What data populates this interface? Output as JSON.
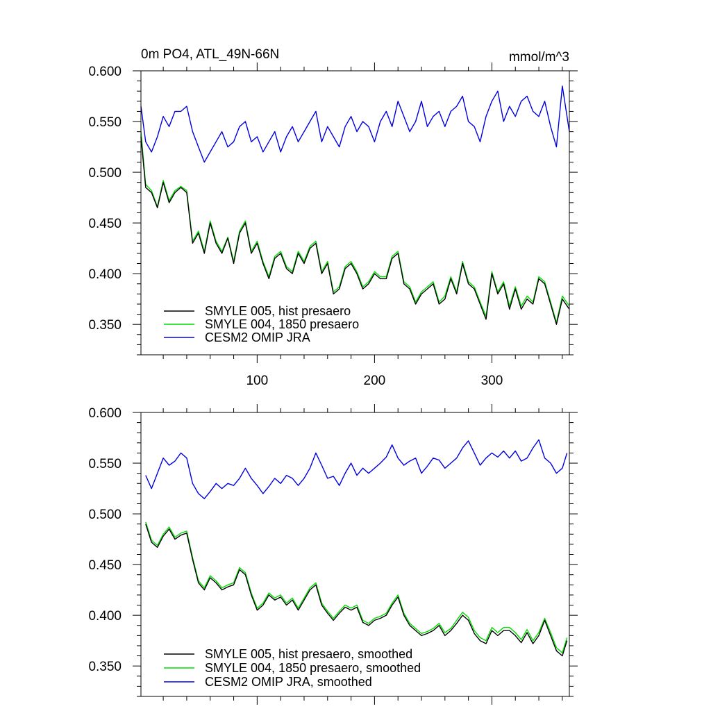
{
  "colors": {
    "black": "#000000",
    "green": "#00dd00",
    "blue": "#0000dd"
  },
  "chart_data": [
    {
      "type": "line",
      "title": "0m PO4, ATL_49N-66N",
      "units": "mmol/m^3",
      "xlim": [
        1,
        366
      ],
      "ylim": [
        0.32,
        0.6
      ],
      "x_ticks": [
        100,
        200,
        300
      ],
      "y_ticks": [
        0.35,
        0.4,
        0.45,
        0.5,
        0.55,
        0.6
      ],
      "y_tick_labels": [
        "0.350",
        "0.400",
        "0.450",
        "0.500",
        "0.550",
        "0.600"
      ],
      "legend_position": "bottom-left",
      "series": [
        {
          "name": "SMYLE 005, hist presaero",
          "color": "#000000",
          "x": [
            1,
            5,
            10,
            15,
            20,
            25,
            30,
            35,
            40,
            45,
            50,
            55,
            60,
            65,
            70,
            75,
            80,
            85,
            90,
            95,
            100,
            105,
            110,
            115,
            120,
            125,
            130,
            135,
            140,
            145,
            150,
            155,
            160,
            165,
            170,
            175,
            180,
            185,
            190,
            195,
            200,
            205,
            210,
            215,
            220,
            225,
            230,
            235,
            240,
            245,
            250,
            255,
            260,
            265,
            270,
            275,
            280,
            285,
            290,
            295,
            300,
            305,
            310,
            315,
            320,
            325,
            330,
            335,
            340,
            345,
            350,
            355,
            360,
            366
          ],
          "values": [
            0.535,
            0.485,
            0.48,
            0.465,
            0.49,
            0.47,
            0.48,
            0.485,
            0.48,
            0.43,
            0.44,
            0.42,
            0.45,
            0.43,
            0.42,
            0.435,
            0.41,
            0.44,
            0.45,
            0.42,
            0.43,
            0.41,
            0.395,
            0.415,
            0.42,
            0.405,
            0.4,
            0.42,
            0.41,
            0.425,
            0.43,
            0.4,
            0.41,
            0.38,
            0.385,
            0.405,
            0.41,
            0.4,
            0.385,
            0.39,
            0.4,
            0.395,
            0.395,
            0.415,
            0.42,
            0.39,
            0.385,
            0.37,
            0.38,
            0.385,
            0.39,
            0.37,
            0.375,
            0.395,
            0.38,
            0.41,
            0.39,
            0.385,
            0.37,
            0.355,
            0.4,
            0.38,
            0.39,
            0.365,
            0.385,
            0.365,
            0.375,
            0.37,
            0.395,
            0.39,
            0.37,
            0.35,
            0.375,
            0.365
          ]
        },
        {
          "name": "SMYLE 004, 1850 presaero",
          "color": "#00dd00",
          "x": [
            1,
            5,
            10,
            15,
            20,
            25,
            30,
            35,
            40,
            45,
            50,
            55,
            60,
            65,
            70,
            75,
            80,
            85,
            90,
            95,
            100,
            105,
            110,
            115,
            120,
            125,
            130,
            135,
            140,
            145,
            150,
            155,
            160,
            165,
            170,
            175,
            180,
            185,
            190,
            195,
            200,
            205,
            210,
            215,
            220,
            225,
            230,
            235,
            240,
            245,
            250,
            255,
            260,
            265,
            270,
            275,
            280,
            285,
            290,
            295,
            300,
            305,
            310,
            315,
            320,
            325,
            330,
            335,
            340,
            345,
            350,
            355,
            360,
            366
          ],
          "values": [
            0.54,
            0.488,
            0.482,
            0.466,
            0.492,
            0.472,
            0.482,
            0.486,
            0.482,
            0.432,
            0.442,
            0.422,
            0.452,
            0.432,
            0.422,
            0.436,
            0.412,
            0.442,
            0.452,
            0.422,
            0.432,
            0.412,
            0.397,
            0.417,
            0.422,
            0.407,
            0.402,
            0.422,
            0.412,
            0.427,
            0.432,
            0.402,
            0.412,
            0.382,
            0.387,
            0.407,
            0.412,
            0.402,
            0.387,
            0.392,
            0.402,
            0.397,
            0.397,
            0.417,
            0.422,
            0.392,
            0.387,
            0.372,
            0.382,
            0.387,
            0.392,
            0.372,
            0.378,
            0.397,
            0.382,
            0.412,
            0.392,
            0.387,
            0.372,
            0.358,
            0.402,
            0.382,
            0.392,
            0.368,
            0.387,
            0.368,
            0.378,
            0.372,
            0.397,
            0.392,
            0.372,
            0.352,
            0.378,
            0.368
          ]
        },
        {
          "name": "CESM2 OMIP JRA",
          "color": "#0000dd",
          "x": [
            1,
            5,
            10,
            15,
            20,
            25,
            30,
            35,
            40,
            45,
            50,
            55,
            60,
            65,
            70,
            75,
            80,
            85,
            90,
            95,
            100,
            105,
            110,
            115,
            120,
            125,
            130,
            135,
            140,
            145,
            150,
            155,
            160,
            165,
            170,
            175,
            180,
            185,
            190,
            195,
            200,
            205,
            210,
            215,
            220,
            225,
            230,
            235,
            240,
            245,
            250,
            255,
            260,
            265,
            270,
            275,
            280,
            285,
            290,
            295,
            300,
            305,
            310,
            315,
            320,
            325,
            330,
            335,
            340,
            345,
            350,
            355,
            360,
            366
          ],
          "values": [
            0.565,
            0.53,
            0.52,
            0.535,
            0.555,
            0.545,
            0.56,
            0.56,
            0.565,
            0.54,
            0.525,
            0.51,
            0.52,
            0.53,
            0.54,
            0.525,
            0.53,
            0.545,
            0.55,
            0.53,
            0.535,
            0.52,
            0.53,
            0.54,
            0.52,
            0.535,
            0.545,
            0.53,
            0.54,
            0.55,
            0.56,
            0.53,
            0.545,
            0.535,
            0.525,
            0.545,
            0.555,
            0.54,
            0.55,
            0.545,
            0.53,
            0.55,
            0.56,
            0.545,
            0.57,
            0.555,
            0.54,
            0.55,
            0.57,
            0.545,
            0.555,
            0.56,
            0.545,
            0.56,
            0.565,
            0.575,
            0.55,
            0.545,
            0.53,
            0.555,
            0.57,
            0.58,
            0.55,
            0.565,
            0.555,
            0.57,
            0.575,
            0.56,
            0.555,
            0.57,
            0.545,
            0.525,
            0.585,
            0.54
          ]
        }
      ]
    },
    {
      "type": "line",
      "xlim": [
        1,
        366
      ],
      "ylim": [
        0.32,
        0.6
      ],
      "x_ticks": [
        100,
        200,
        300
      ],
      "y_ticks": [
        0.35,
        0.4,
        0.45,
        0.5,
        0.55,
        0.6
      ],
      "y_tick_labels": [
        "0.350",
        "0.400",
        "0.450",
        "0.500",
        "0.550",
        "0.600"
      ],
      "legend_position": "bottom-left",
      "series": [
        {
          "name": "SMYLE 005, hist presaero, smoothed",
          "color": "#000000",
          "x": [
            5,
            10,
            15,
            20,
            25,
            30,
            35,
            40,
            45,
            50,
            55,
            60,
            65,
            70,
            75,
            80,
            85,
            90,
            95,
            100,
            105,
            110,
            115,
            120,
            125,
            130,
            135,
            140,
            145,
            150,
            155,
            160,
            165,
            170,
            175,
            180,
            185,
            190,
            195,
            200,
            205,
            210,
            215,
            220,
            225,
            230,
            235,
            240,
            245,
            250,
            255,
            260,
            265,
            270,
            275,
            280,
            285,
            290,
            295,
            300,
            305,
            310,
            315,
            320,
            325,
            330,
            335,
            340,
            345,
            350,
            355,
            360,
            364
          ],
          "values": [
            0.49,
            0.472,
            0.467,
            0.478,
            0.485,
            0.475,
            0.479,
            0.481,
            0.455,
            0.432,
            0.425,
            0.437,
            0.432,
            0.425,
            0.428,
            0.43,
            0.445,
            0.44,
            0.42,
            0.405,
            0.41,
            0.42,
            0.415,
            0.418,
            0.41,
            0.415,
            0.405,
            0.415,
            0.425,
            0.43,
            0.41,
            0.402,
            0.395,
            0.402,
            0.408,
            0.405,
            0.408,
            0.393,
            0.39,
            0.395,
            0.397,
            0.4,
            0.41,
            0.418,
            0.4,
            0.39,
            0.385,
            0.38,
            0.382,
            0.385,
            0.39,
            0.38,
            0.385,
            0.392,
            0.4,
            0.395,
            0.382,
            0.375,
            0.372,
            0.385,
            0.38,
            0.385,
            0.385,
            0.38,
            0.373,
            0.383,
            0.372,
            0.38,
            0.395,
            0.38,
            0.365,
            0.36,
            0.375
          ]
        },
        {
          "name": "SMYLE 004, 1850 presaero, smoothed",
          "color": "#00dd00",
          "x": [
            5,
            10,
            15,
            20,
            25,
            30,
            35,
            40,
            45,
            50,
            55,
            60,
            65,
            70,
            75,
            80,
            85,
            90,
            95,
            100,
            105,
            110,
            115,
            120,
            125,
            130,
            135,
            140,
            145,
            150,
            155,
            160,
            165,
            170,
            175,
            180,
            185,
            190,
            195,
            200,
            205,
            210,
            215,
            220,
            225,
            230,
            235,
            240,
            245,
            250,
            255,
            260,
            265,
            270,
            275,
            280,
            285,
            290,
            295,
            300,
            305,
            310,
            315,
            320,
            325,
            330,
            335,
            340,
            345,
            350,
            355,
            360,
            364
          ],
          "values": [
            0.492,
            0.474,
            0.469,
            0.48,
            0.487,
            0.477,
            0.481,
            0.483,
            0.457,
            0.434,
            0.427,
            0.439,
            0.434,
            0.427,
            0.43,
            0.432,
            0.447,
            0.442,
            0.422,
            0.407,
            0.412,
            0.422,
            0.417,
            0.42,
            0.412,
            0.417,
            0.407,
            0.417,
            0.427,
            0.432,
            0.412,
            0.404,
            0.397,
            0.404,
            0.41,
            0.407,
            0.41,
            0.395,
            0.392,
            0.397,
            0.399,
            0.402,
            0.412,
            0.42,
            0.402,
            0.392,
            0.387,
            0.382,
            0.384,
            0.387,
            0.392,
            0.383,
            0.387,
            0.395,
            0.403,
            0.398,
            0.385,
            0.378,
            0.375,
            0.388,
            0.383,
            0.388,
            0.388,
            0.383,
            0.376,
            0.386,
            0.375,
            0.383,
            0.397,
            0.383,
            0.368,
            0.363,
            0.378
          ]
        },
        {
          "name": "CESM2 OMIP JRA, smoothed",
          "color": "#0000dd",
          "x": [
            5,
            10,
            15,
            20,
            25,
            30,
            35,
            40,
            45,
            50,
            55,
            60,
            65,
            70,
            75,
            80,
            85,
            90,
            95,
            100,
            105,
            110,
            115,
            120,
            125,
            130,
            135,
            140,
            145,
            150,
            155,
            160,
            165,
            170,
            175,
            180,
            185,
            190,
            195,
            200,
            205,
            210,
            215,
            220,
            225,
            230,
            235,
            240,
            245,
            250,
            255,
            260,
            265,
            270,
            275,
            280,
            285,
            290,
            295,
            300,
            305,
            310,
            315,
            320,
            325,
            330,
            335,
            340,
            345,
            350,
            355,
            360,
            364
          ],
          "values": [
            0.538,
            0.525,
            0.54,
            0.555,
            0.548,
            0.552,
            0.56,
            0.555,
            0.53,
            0.52,
            0.515,
            0.522,
            0.53,
            0.525,
            0.53,
            0.528,
            0.535,
            0.545,
            0.535,
            0.528,
            0.52,
            0.527,
            0.535,
            0.53,
            0.538,
            0.535,
            0.528,
            0.535,
            0.545,
            0.56,
            0.548,
            0.535,
            0.537,
            0.528,
            0.54,
            0.55,
            0.538,
            0.545,
            0.54,
            0.545,
            0.55,
            0.556,
            0.568,
            0.555,
            0.548,
            0.552,
            0.555,
            0.54,
            0.547,
            0.555,
            0.553,
            0.545,
            0.55,
            0.555,
            0.565,
            0.572,
            0.56,
            0.548,
            0.555,
            0.56,
            0.556,
            0.562,
            0.555,
            0.562,
            0.552,
            0.555,
            0.565,
            0.573,
            0.555,
            0.55,
            0.54,
            0.545,
            0.56
          ]
        }
      ]
    }
  ]
}
